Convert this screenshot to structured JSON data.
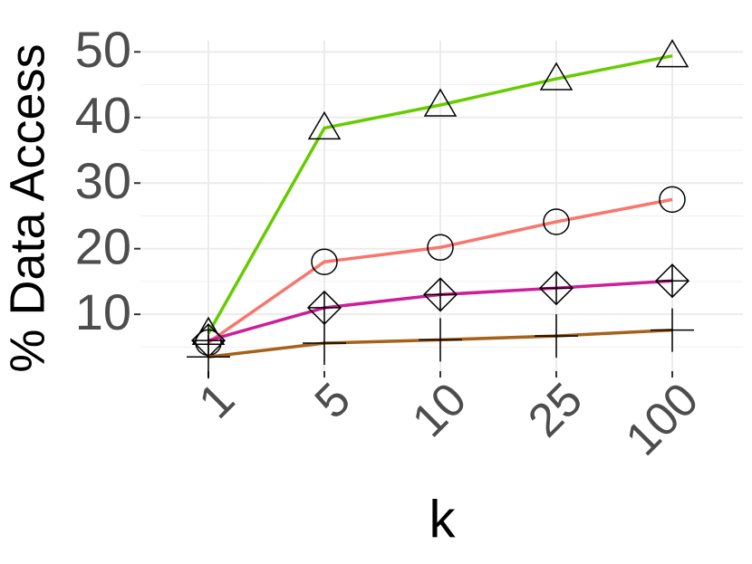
{
  "chart_data": {
    "type": "line",
    "x_label": "k",
    "y_label": "% Data Access",
    "categories": [
      "1",
      "5",
      "10",
      "25",
      "100"
    ],
    "series": [
      {
        "color": "#66cc00",
        "shape": "triangle",
        "values": [
          7.1,
          38.4,
          41.9,
          45.9,
          49.4
        ]
      },
      {
        "color": "#f8766d",
        "shape": "circle",
        "values": [
          5.7,
          18.0,
          20.2,
          24.1,
          27.5
        ]
      },
      {
        "color": "#cc1f99",
        "shape": "diamond-plus",
        "values": [
          6.0,
          11.0,
          13.0,
          14.0,
          15.1
        ]
      },
      {
        "color": "#a6611a",
        "shape": "plus",
        "values": [
          3.5,
          5.6,
          6.1,
          6.7,
          7.6
        ]
      }
    ],
    "ylim": [
      3.4,
      51.7
    ],
    "yticks": [
      10,
      20,
      30,
      40,
      50
    ],
    "grid": true
  }
}
